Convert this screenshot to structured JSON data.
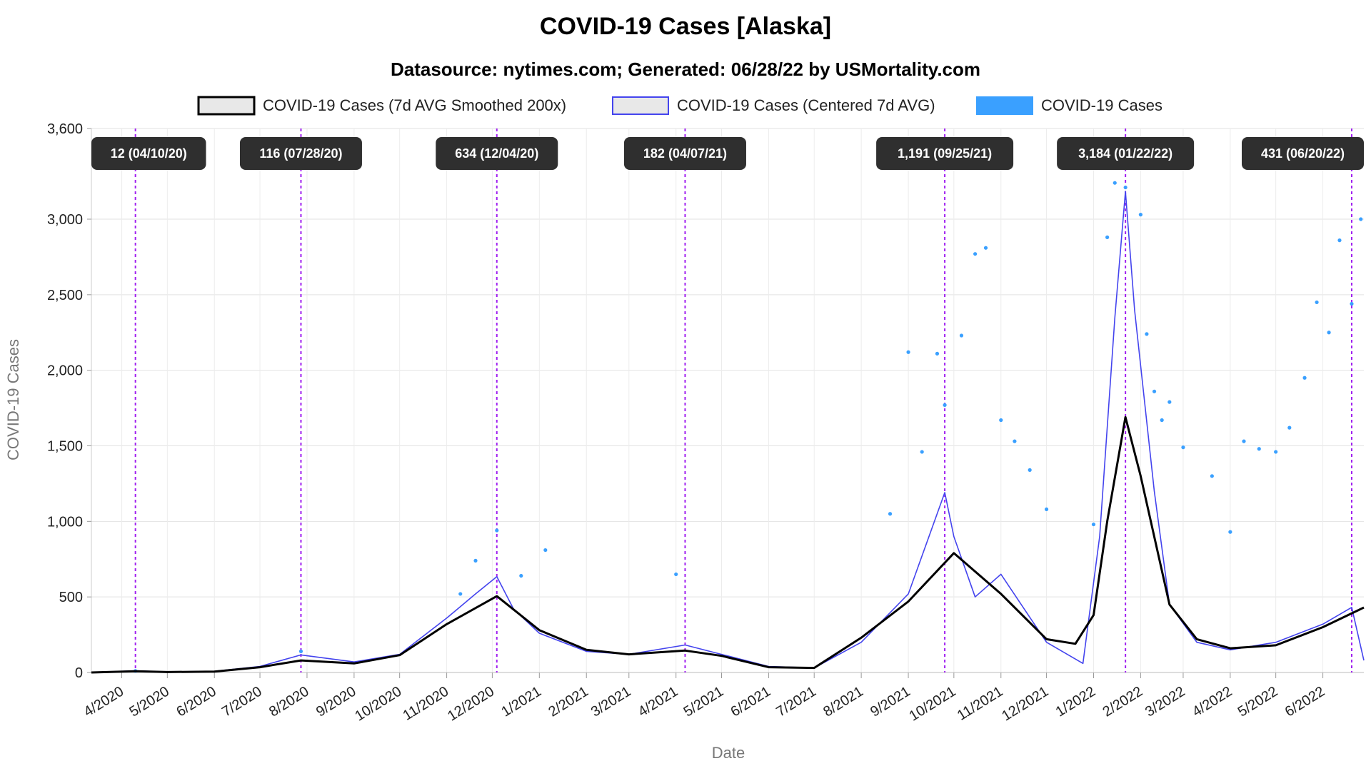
{
  "chart_data": {
    "type": "line",
    "title": "COVID-19 Cases [Alaska]",
    "subtitle": "Datasource: nytimes.com; Generated: 06/28/22 by USMortality.com",
    "xlabel": "Date",
    "ylabel": "COVID-19 Cases",
    "ylim": [
      0,
      3600
    ],
    "yticks": [
      "0",
      "500",
      "1,000",
      "1,500",
      "2,000",
      "2,500",
      "3,000",
      "3,600"
    ],
    "ytick_values": [
      0,
      500,
      1000,
      1500,
      2000,
      2500,
      3000,
      3600
    ],
    "xlim": [
      "2020-03-12",
      "2022-06-28"
    ],
    "x_ticks": [
      {
        "label": "4/2020",
        "date": "2020-04-01"
      },
      {
        "label": "5/2020",
        "date": "2020-05-01"
      },
      {
        "label": "6/2020",
        "date": "2020-06-01"
      },
      {
        "label": "7/2020",
        "date": "2020-07-01"
      },
      {
        "label": "8/2020",
        "date": "2020-08-01"
      },
      {
        "label": "9/2020",
        "date": "2020-09-01"
      },
      {
        "label": "10/2020",
        "date": "2020-10-01"
      },
      {
        "label": "11/2020",
        "date": "2020-11-01"
      },
      {
        "label": "12/2020",
        "date": "2020-12-01"
      },
      {
        "label": "1/2021",
        "date": "2021-01-01"
      },
      {
        "label": "2/2021",
        "date": "2021-02-01"
      },
      {
        "label": "3/2021",
        "date": "2021-03-01"
      },
      {
        "label": "4/2021",
        "date": "2021-04-01"
      },
      {
        "label": "5/2021",
        "date": "2021-05-01"
      },
      {
        "label": "6/2021",
        "date": "2021-06-01"
      },
      {
        "label": "7/2021",
        "date": "2021-07-01"
      },
      {
        "label": "8/2021",
        "date": "2021-08-01"
      },
      {
        "label": "9/2021",
        "date": "2021-09-01"
      },
      {
        "label": "10/2021",
        "date": "2021-10-01"
      },
      {
        "label": "11/2021",
        "date": "2021-11-01"
      },
      {
        "label": "12/2021",
        "date": "2021-12-01"
      },
      {
        "label": "1/2022",
        "date": "2022-01-01"
      },
      {
        "label": "2/2022",
        "date": "2022-02-01"
      },
      {
        "label": "3/2022",
        "date": "2022-03-01"
      },
      {
        "label": "4/2022",
        "date": "2022-04-01"
      },
      {
        "label": "5/2022",
        "date": "2022-05-01"
      },
      {
        "label": "6/2022",
        "date": "2022-06-01"
      }
    ],
    "legend": [
      {
        "label": "COVID-19 Cases (7d AVG Smoothed 200x)",
        "fill": "#e8e8e8",
        "stroke": "#000000"
      },
      {
        "label": "COVID-19 Cases (Centered 7d AVG)",
        "fill": "#e8e8e8",
        "stroke": "#4444ee"
      },
      {
        "label": "COVID-19 Cases",
        "fill": "#3aa0ff",
        "stroke": "#3aa0ff"
      }
    ],
    "annotations": [
      {
        "label": "12 (04/10/20)",
        "date": "2020-04-10",
        "value": 12
      },
      {
        "label": "116 (07/28/20)",
        "date": "2020-07-28",
        "value": 116
      },
      {
        "label": "634 (12/04/20)",
        "date": "2020-12-04",
        "value": 634
      },
      {
        "label": "182 (04/07/21)",
        "date": "2021-04-07",
        "value": 182
      },
      {
        "label": "1,191 (09/25/21)",
        "date": "2021-09-25",
        "value": 1191
      },
      {
        "label": "3,184 (01/22/22)",
        "date": "2022-01-22",
        "value": 3184
      },
      {
        "label": "431 (06/20/22)",
        "date": "2022-06-20",
        "value": 431
      }
    ],
    "series": [
      {
        "name": "COVID-19 Cases (7d AVG Smoothed 200x)",
        "color": "#000000",
        "points": [
          [
            "2020-03-12",
            0
          ],
          [
            "2020-04-10",
            8
          ],
          [
            "2020-05-01",
            3
          ],
          [
            "2020-06-01",
            6
          ],
          [
            "2020-07-01",
            35
          ],
          [
            "2020-07-28",
            80
          ],
          [
            "2020-09-01",
            60
          ],
          [
            "2020-10-01",
            115
          ],
          [
            "2020-11-01",
            320
          ],
          [
            "2020-12-04",
            505
          ],
          [
            "2021-01-01",
            280
          ],
          [
            "2021-02-01",
            150
          ],
          [
            "2021-03-01",
            120
          ],
          [
            "2021-04-07",
            145
          ],
          [
            "2021-05-01",
            110
          ],
          [
            "2021-06-01",
            35
          ],
          [
            "2021-07-01",
            30
          ],
          [
            "2021-08-01",
            230
          ],
          [
            "2021-09-01",
            470
          ],
          [
            "2021-10-01",
            790
          ],
          [
            "2021-11-01",
            520
          ],
          [
            "2021-12-01",
            220
          ],
          [
            "2021-12-20",
            190
          ],
          [
            "2022-01-01",
            380
          ],
          [
            "2022-01-10",
            1000
          ],
          [
            "2022-01-22",
            1690
          ],
          [
            "2022-02-01",
            1300
          ],
          [
            "2022-02-20",
            450
          ],
          [
            "2022-03-10",
            220
          ],
          [
            "2022-04-01",
            160
          ],
          [
            "2022-05-01",
            180
          ],
          [
            "2022-06-01",
            300
          ],
          [
            "2022-06-28",
            430
          ]
        ]
      },
      {
        "name": "COVID-19 Cases (Centered 7d AVG)",
        "color": "#4444ee",
        "points": [
          [
            "2020-03-12",
            0
          ],
          [
            "2020-04-10",
            12
          ],
          [
            "2020-05-01",
            4
          ],
          [
            "2020-06-01",
            8
          ],
          [
            "2020-07-01",
            40
          ],
          [
            "2020-07-28",
            116
          ],
          [
            "2020-09-01",
            70
          ],
          [
            "2020-10-01",
            120
          ],
          [
            "2020-11-01",
            360
          ],
          [
            "2020-11-20",
            520
          ],
          [
            "2020-12-04",
            634
          ],
          [
            "2020-12-15",
            420
          ],
          [
            "2021-01-01",
            260
          ],
          [
            "2021-02-01",
            140
          ],
          [
            "2021-03-01",
            120
          ],
          [
            "2021-04-07",
            182
          ],
          [
            "2021-05-01",
            120
          ],
          [
            "2021-06-01",
            40
          ],
          [
            "2021-07-01",
            30
          ],
          [
            "2021-08-01",
            200
          ],
          [
            "2021-09-01",
            520
          ],
          [
            "2021-09-25",
            1191
          ],
          [
            "2021-10-01",
            900
          ],
          [
            "2021-10-15",
            500
          ],
          [
            "2021-11-01",
            650
          ],
          [
            "2021-12-01",
            200
          ],
          [
            "2021-12-25",
            60
          ],
          [
            "2022-01-05",
            900
          ],
          [
            "2022-01-15",
            2350
          ],
          [
            "2022-01-22",
            3184
          ],
          [
            "2022-01-28",
            2400
          ],
          [
            "2022-02-10",
            1200
          ],
          [
            "2022-02-20",
            450
          ],
          [
            "2022-03-10",
            200
          ],
          [
            "2022-04-01",
            150
          ],
          [
            "2022-05-01",
            200
          ],
          [
            "2022-06-01",
            320
          ],
          [
            "2022-06-20",
            431
          ],
          [
            "2022-06-28",
            80
          ]
        ]
      },
      {
        "name": "COVID-19 Cases",
        "color": "#3aa0ff",
        "points": [
          [
            "2020-04-10",
            10
          ],
          [
            "2020-07-28",
            140
          ],
          [
            "2020-11-10",
            520
          ],
          [
            "2020-11-20",
            740
          ],
          [
            "2020-12-04",
            940
          ],
          [
            "2020-12-20",
            640
          ],
          [
            "2021-01-05",
            810
          ],
          [
            "2021-04-01",
            650
          ],
          [
            "2021-08-20",
            1050
          ],
          [
            "2021-09-01",
            2120
          ],
          [
            "2021-09-10",
            1460
          ],
          [
            "2021-09-20",
            2110
          ],
          [
            "2021-09-25",
            1770
          ],
          [
            "2021-10-06",
            2230
          ],
          [
            "2021-10-15",
            2770
          ],
          [
            "2021-10-22",
            2810
          ],
          [
            "2021-11-01",
            1670
          ],
          [
            "2021-11-10",
            1530
          ],
          [
            "2021-11-20",
            1340
          ],
          [
            "2021-12-01",
            1080
          ],
          [
            "2022-01-01",
            980
          ],
          [
            "2022-01-10",
            2880
          ],
          [
            "2022-01-15",
            3240
          ],
          [
            "2022-01-22",
            3210
          ],
          [
            "2022-02-01",
            3030
          ],
          [
            "2022-02-05",
            2240
          ],
          [
            "2022-02-10",
            1860
          ],
          [
            "2022-02-15",
            1670
          ],
          [
            "2022-02-20",
            1790
          ],
          [
            "2022-03-01",
            1490
          ],
          [
            "2022-03-20",
            1300
          ],
          [
            "2022-04-01",
            930
          ],
          [
            "2022-04-10",
            1530
          ],
          [
            "2022-04-20",
            1480
          ],
          [
            "2022-05-01",
            1460
          ],
          [
            "2022-05-10",
            1620
          ],
          [
            "2022-05-20",
            1950
          ],
          [
            "2022-05-28",
            2450
          ],
          [
            "2022-06-05",
            2250
          ],
          [
            "2022-06-12",
            2860
          ],
          [
            "2022-06-20",
            2440
          ],
          [
            "2022-06-26",
            3000
          ]
        ]
      }
    ]
  }
}
